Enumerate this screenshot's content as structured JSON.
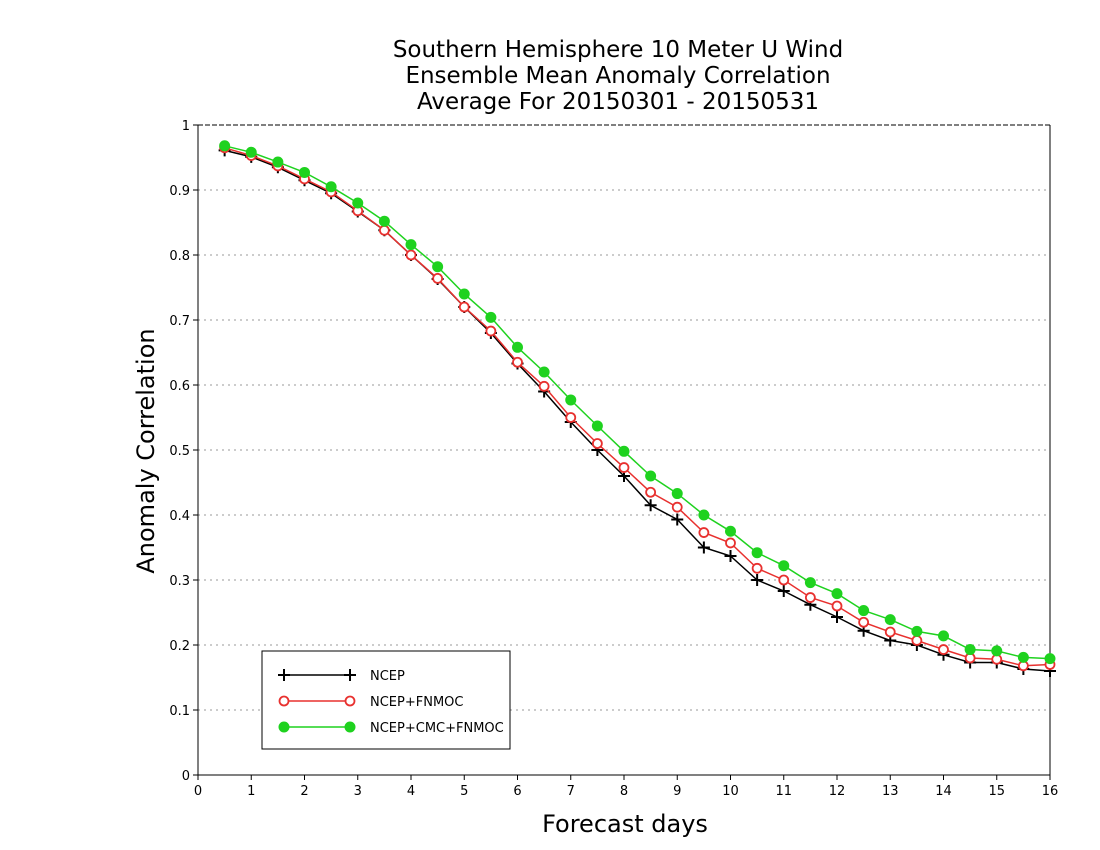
{
  "chart_data": {
    "type": "line",
    "title": [
      "Southern Hemisphere 10 Meter U Wind",
      "Ensemble Mean Anomaly Correlation",
      "Average For 20150301 - 20150531"
    ],
    "xlabel": "Forecast days",
    "ylabel": "Anomaly Correlation",
    "xlim": [
      0,
      16
    ],
    "ylim": [
      0,
      1
    ],
    "xticks": [
      "0",
      "1",
      "2",
      "3",
      "4",
      "5",
      "6",
      "7",
      "8",
      "9",
      "10",
      "11",
      "12",
      "13",
      "14",
      "15",
      "16"
    ],
    "yticks": [
      "0",
      "0.1",
      "0.2",
      "0.3",
      "0.4",
      "0.5",
      "0.6",
      "0.7",
      "0.8",
      "0.9",
      "1"
    ],
    "grid": "dotted horizontal",
    "legend_position": "bottom-left",
    "x": [
      0.5,
      1,
      1.5,
      2,
      2.5,
      3,
      3.5,
      4,
      4.5,
      5,
      5.5,
      6,
      6.5,
      7,
      7.5,
      8,
      8.5,
      9,
      9.5,
      10,
      10.5,
      11,
      11.5,
      12,
      12.5,
      13,
      13.5,
      14,
      14.5,
      15,
      15.5,
      16
    ],
    "series": [
      {
        "name": "NCEP",
        "color": "#000000",
        "marker": "plus",
        "values": [
          0.961,
          0.951,
          0.935,
          0.915,
          0.895,
          0.867,
          0.838,
          0.8,
          0.763,
          0.72,
          0.68,
          0.633,
          0.59,
          0.543,
          0.5,
          0.46,
          0.415,
          0.393,
          0.35,
          0.337,
          0.3,
          0.283,
          0.262,
          0.243,
          0.222,
          0.207,
          0.2,
          0.185,
          0.173,
          0.173,
          0.163,
          0.16
        ]
      },
      {
        "name": "NCEP+FNMOC",
        "color": "#e8312f",
        "marker": "open-circle",
        "values": [
          0.965,
          0.953,
          0.937,
          0.917,
          0.897,
          0.868,
          0.838,
          0.8,
          0.764,
          0.72,
          0.683,
          0.635,
          0.598,
          0.55,
          0.51,
          0.473,
          0.435,
          0.412,
          0.373,
          0.357,
          0.318,
          0.3,
          0.273,
          0.26,
          0.235,
          0.22,
          0.207,
          0.193,
          0.18,
          0.178,
          0.168,
          0.17
        ]
      },
      {
        "name": "NCEP+CMC+FNMOC",
        "color": "#1fd21f",
        "marker": "filled-circle",
        "values": [
          0.968,
          0.958,
          0.943,
          0.927,
          0.905,
          0.88,
          0.852,
          0.816,
          0.782,
          0.74,
          0.704,
          0.658,
          0.62,
          0.577,
          0.537,
          0.498,
          0.46,
          0.433,
          0.4,
          0.375,
          0.342,
          0.322,
          0.296,
          0.279,
          0.253,
          0.239,
          0.221,
          0.214,
          0.193,
          0.191,
          0.181,
          0.179
        ]
      }
    ]
  }
}
